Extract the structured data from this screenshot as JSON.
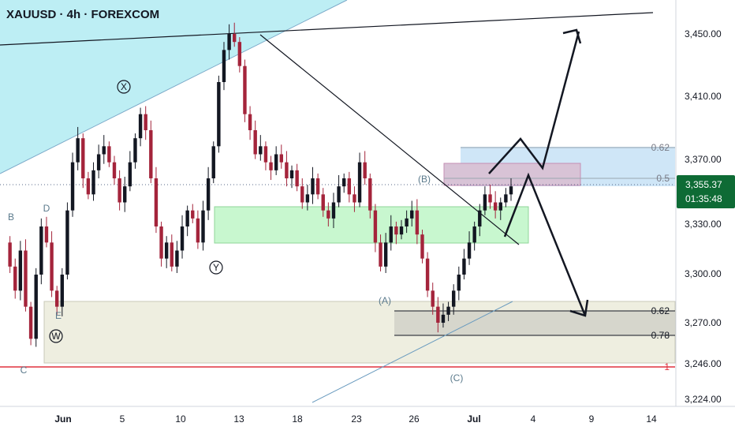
{
  "header": {
    "symbol": "XAUUSD · 4h · FOREXCOM"
  },
  "colors": {
    "background_band": "#b2ebf2",
    "up_candle": "#131722",
    "down_candle": "#a4243b",
    "axis_text": "#131722",
    "price_label_bg": "#0e6b35",
    "fib_label": "#787b86",
    "red_line": "#e0323f",
    "green_zone": "#b9f6ca",
    "gray_zone": "#e8e8dc",
    "blue_zone": "#bbdefb",
    "pink_zone": "#e1bee7"
  },
  "chart_data": {
    "type": "candlestick",
    "y_axis": {
      "ticks": [
        "3,450.00",
        "3,410.00",
        "3,370.00",
        "3,330.00",
        "3,300.00",
        "3,270.00",
        "3,246.00",
        "3,224.00"
      ],
      "tick_values": [
        3450,
        3410,
        3370,
        3330,
        3300,
        3270,
        3246,
        3224
      ],
      "current_price": "3,355.37",
      "countdown": "01:35:48"
    },
    "x_axis": {
      "ticks": [
        "Jun",
        "5",
        "10",
        "13",
        "18",
        "23",
        "26",
        "Jul",
        "4",
        "9",
        "14"
      ]
    },
    "wave_labels": {
      "B": "B",
      "D": "D",
      "X": "X",
      "Y": "Y",
      "E": "E",
      "W": "W",
      "C": "C",
      "A_paren": "(A)",
      "B_paren": "(B)",
      "C_paren": "(C)"
    },
    "fib_levels": {
      "upper_062": "0.62",
      "upper_05": "0.5",
      "lower_062": "0.62",
      "lower_078": "0.78",
      "lower_1": "1"
    },
    "price_path": [
      3320,
      3305,
      3290,
      3315,
      3280,
      3260,
      3300,
      3330,
      3320,
      3290,
      3280,
      3300,
      3340,
      3370,
      3385,
      3360,
      3350,
      3365,
      3375,
      3380,
      3370,
      3360,
      3345,
      3355,
      3370,
      3385,
      3400,
      3390,
      3360,
      3330,
      3310,
      3320,
      3305,
      3315,
      3330,
      3340,
      3335,
      3320,
      3340,
      3360,
      3380,
      3420,
      3440,
      3450,
      3445,
      3430,
      3400,
      3390,
      3375,
      3380,
      3370,
      3365,
      3375,
      3370,
      3360,
      3365,
      3355,
      3345,
      3350,
      3360,
      3350,
      3340,
      3335,
      3345,
      3355,
      3360,
      3350,
      3345,
      3370,
      3360,
      3340,
      3320,
      3305,
      3320,
      3330,
      3325,
      3330,
      3335,
      3340,
      3325,
      3310,
      3290,
      3280,
      3270,
      3275,
      3280,
      3290,
      3300,
      3310,
      3320,
      3330,
      3340,
      3350,
      3345,
      3340,
      3345,
      3350,
      3355
    ]
  }
}
